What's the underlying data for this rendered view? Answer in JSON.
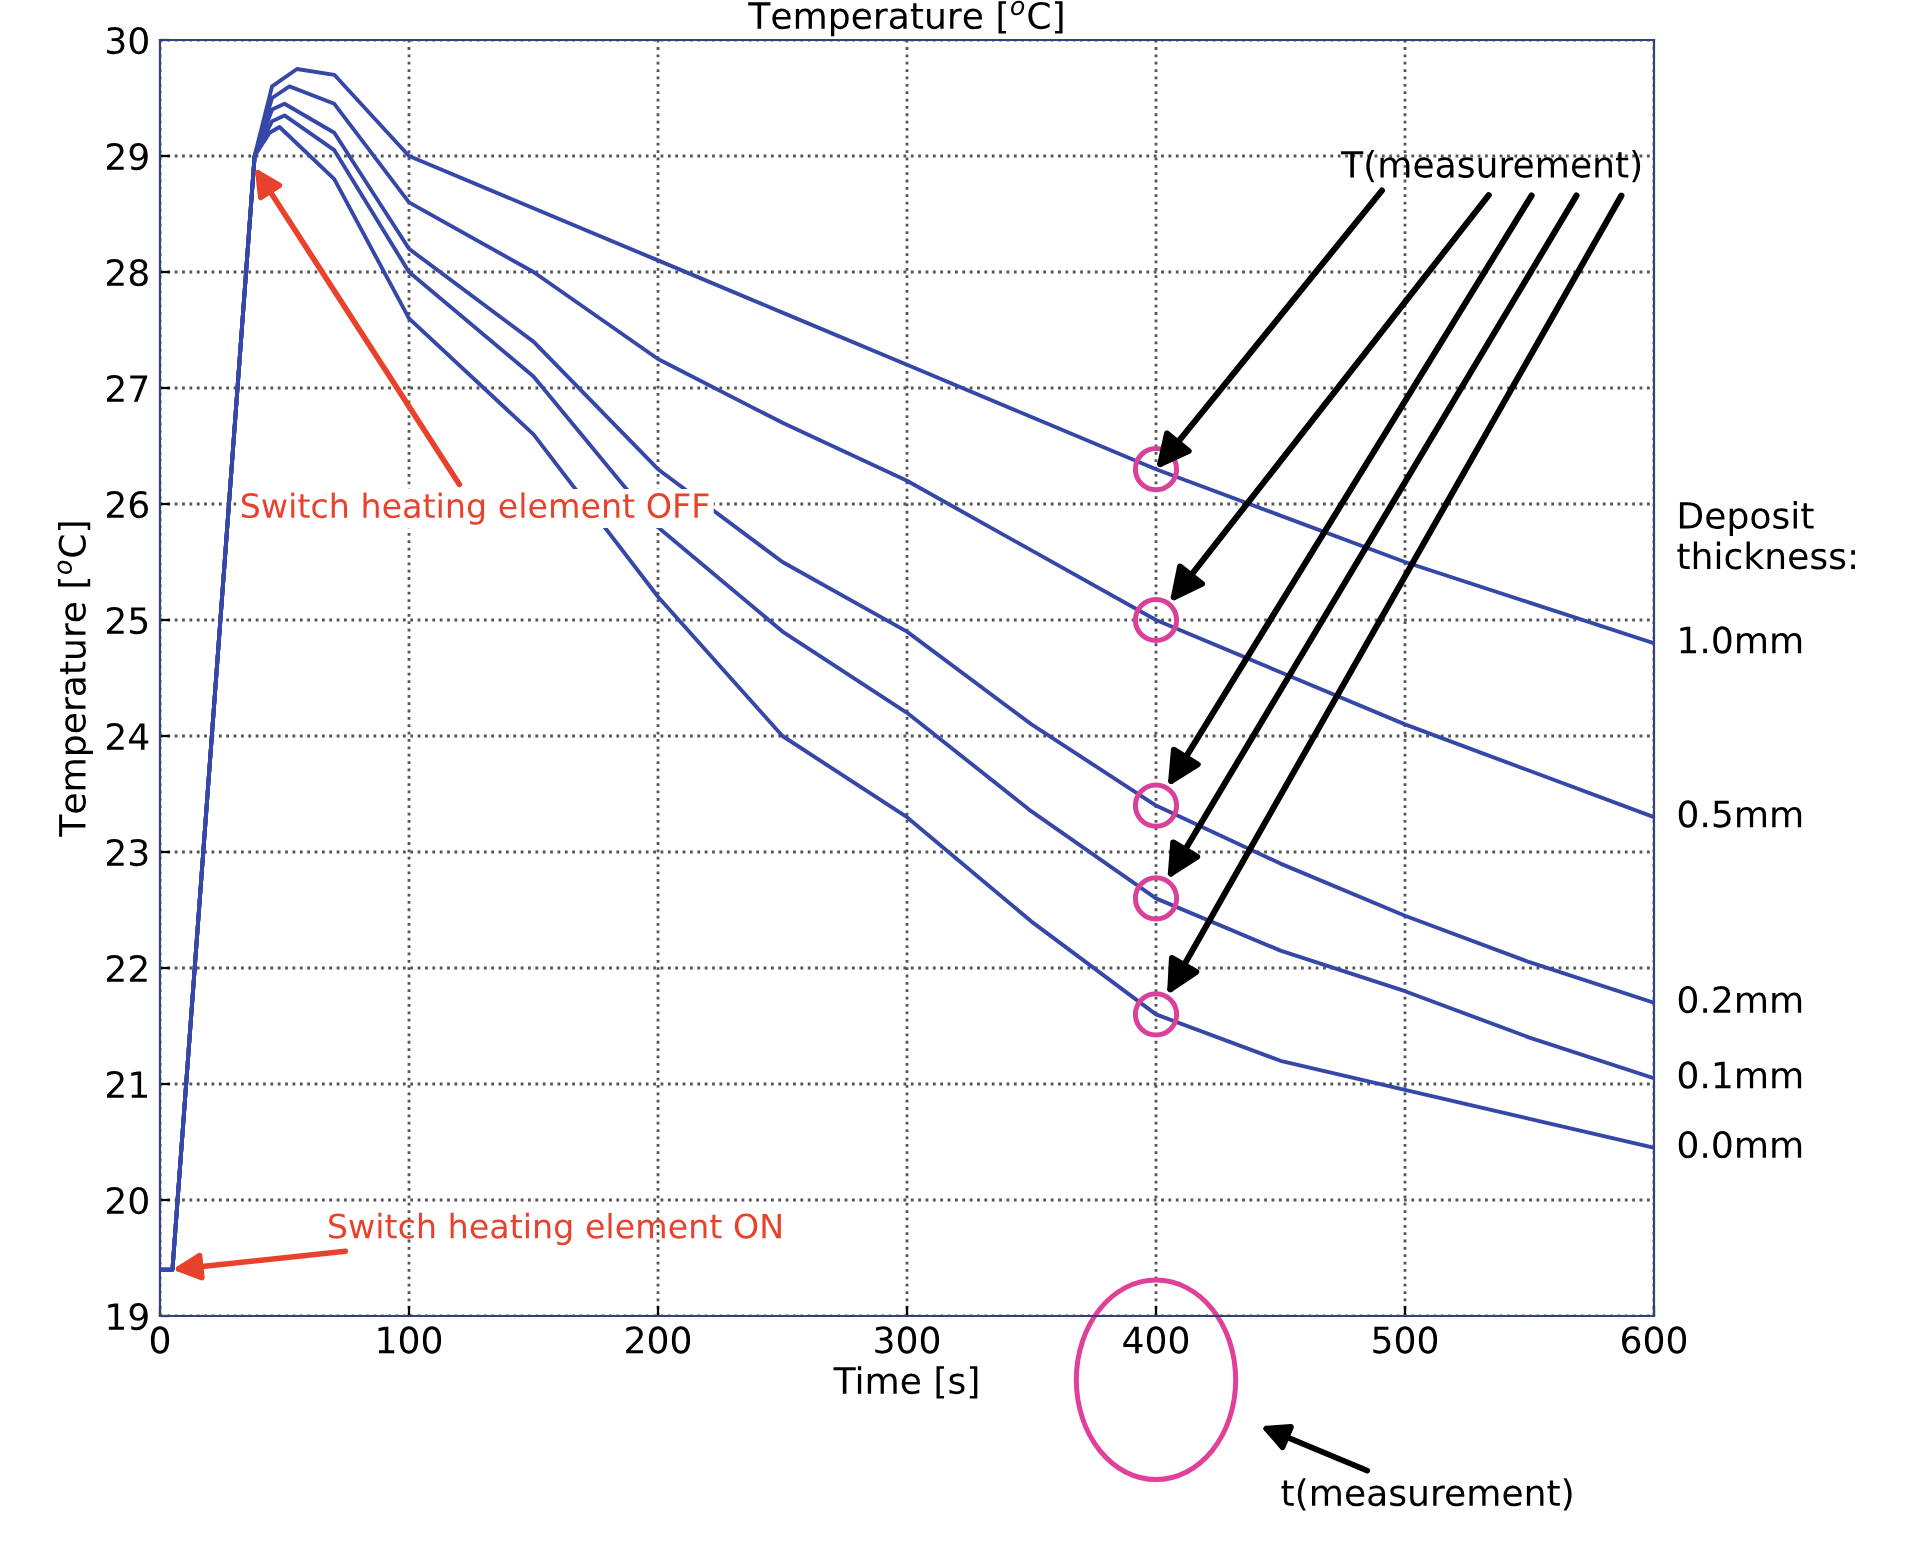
{
  "chart_data": {
    "type": "line",
    "title": "Temperature [$^{o}$C]",
    "xlabel": "Time [s]",
    "ylabel": "Temperature [$^{o}$C]",
    "legend_title": "Deposit thickness:",
    "xlim": [
      0,
      600
    ],
    "ylim": [
      19,
      30
    ],
    "xticks": [
      0,
      100,
      200,
      300,
      400,
      500,
      600
    ],
    "yticks": [
      19,
      20,
      21,
      22,
      23,
      24,
      25,
      26,
      27,
      28,
      29,
      30
    ],
    "grid": true,
    "line_style": "solid",
    "legend": false,
    "series": [
      {
        "name": "1.0mm",
        "color": "#3548a8",
        "x": [
          0,
          5,
          38,
          45,
          55,
          70,
          100,
          150,
          200,
          250,
          300,
          350,
          400,
          450,
          500,
          550,
          600
        ],
        "values": [
          19.4,
          19.4,
          29.0,
          29.6,
          29.75,
          29.7,
          29.0,
          28.55,
          28.1,
          27.65,
          27.2,
          26.75,
          26.3,
          25.9,
          25.5,
          25.15,
          24.8
        ]
      },
      {
        "name": "0.5mm",
        "color": "#3548a8",
        "x": [
          0,
          5,
          38,
          45,
          52,
          70,
          100,
          150,
          200,
          250,
          300,
          350,
          400,
          450,
          500,
          550,
          600
        ],
        "values": [
          19.4,
          19.4,
          29.0,
          29.5,
          29.6,
          29.45,
          28.6,
          28.0,
          27.25,
          26.7,
          26.2,
          25.6,
          25.0,
          24.55,
          24.1,
          23.7,
          23.3
        ]
      },
      {
        "name": "0.2mm",
        "color": "#3548a8",
        "x": [
          0,
          5,
          38,
          45,
          50,
          70,
          100,
          150,
          200,
          250,
          300,
          350,
          400,
          450,
          500,
          550,
          600
        ],
        "values": [
          19.4,
          19.4,
          29.0,
          29.4,
          29.45,
          29.2,
          28.2,
          27.4,
          26.3,
          25.5,
          24.9,
          24.1,
          23.4,
          22.9,
          22.45,
          22.05,
          21.7
        ]
      },
      {
        "name": "0.1mm",
        "color": "#3548a8",
        "x": [
          0,
          5,
          38,
          45,
          50,
          70,
          100,
          150,
          200,
          250,
          300,
          350,
          400,
          450,
          500,
          550,
          600
        ],
        "values": [
          19.4,
          19.4,
          29.0,
          29.3,
          29.35,
          29.05,
          28.0,
          27.1,
          25.8,
          24.9,
          24.2,
          23.35,
          22.6,
          22.15,
          21.8,
          21.4,
          21.05
        ]
      },
      {
        "name": "0.0mm",
        "color": "#3548a8",
        "x": [
          0,
          5,
          38,
          44,
          48,
          70,
          100,
          150,
          200,
          250,
          300,
          350,
          400,
          450,
          500,
          550,
          600
        ],
        "values": [
          19.4,
          19.4,
          29.0,
          29.2,
          29.25,
          28.8,
          27.6,
          26.6,
          25.2,
          24.0,
          23.3,
          22.4,
          21.6,
          21.2,
          20.95,
          20.7,
          20.45
        ]
      },
      {
        "type": "scatter",
        "color": "#d8409a",
        "marker": "circle",
        "x": [
          400,
          400,
          400,
          400,
          400
        ],
        "values": [
          26.3,
          25.0,
          23.4,
          22.6,
          21.6
        ]
      }
    ],
    "annotations": [
      {
        "text": "Switch heating element OFF",
        "x": 38,
        "y": 28.9
      },
      {
        "text": "Switch heating element ON",
        "x": 5,
        "y": 19.4
      },
      {
        "text": "T(measurement)",
        "x": 400,
        "y": 26.3
      },
      "t(measurement)"
    ]
  }
}
